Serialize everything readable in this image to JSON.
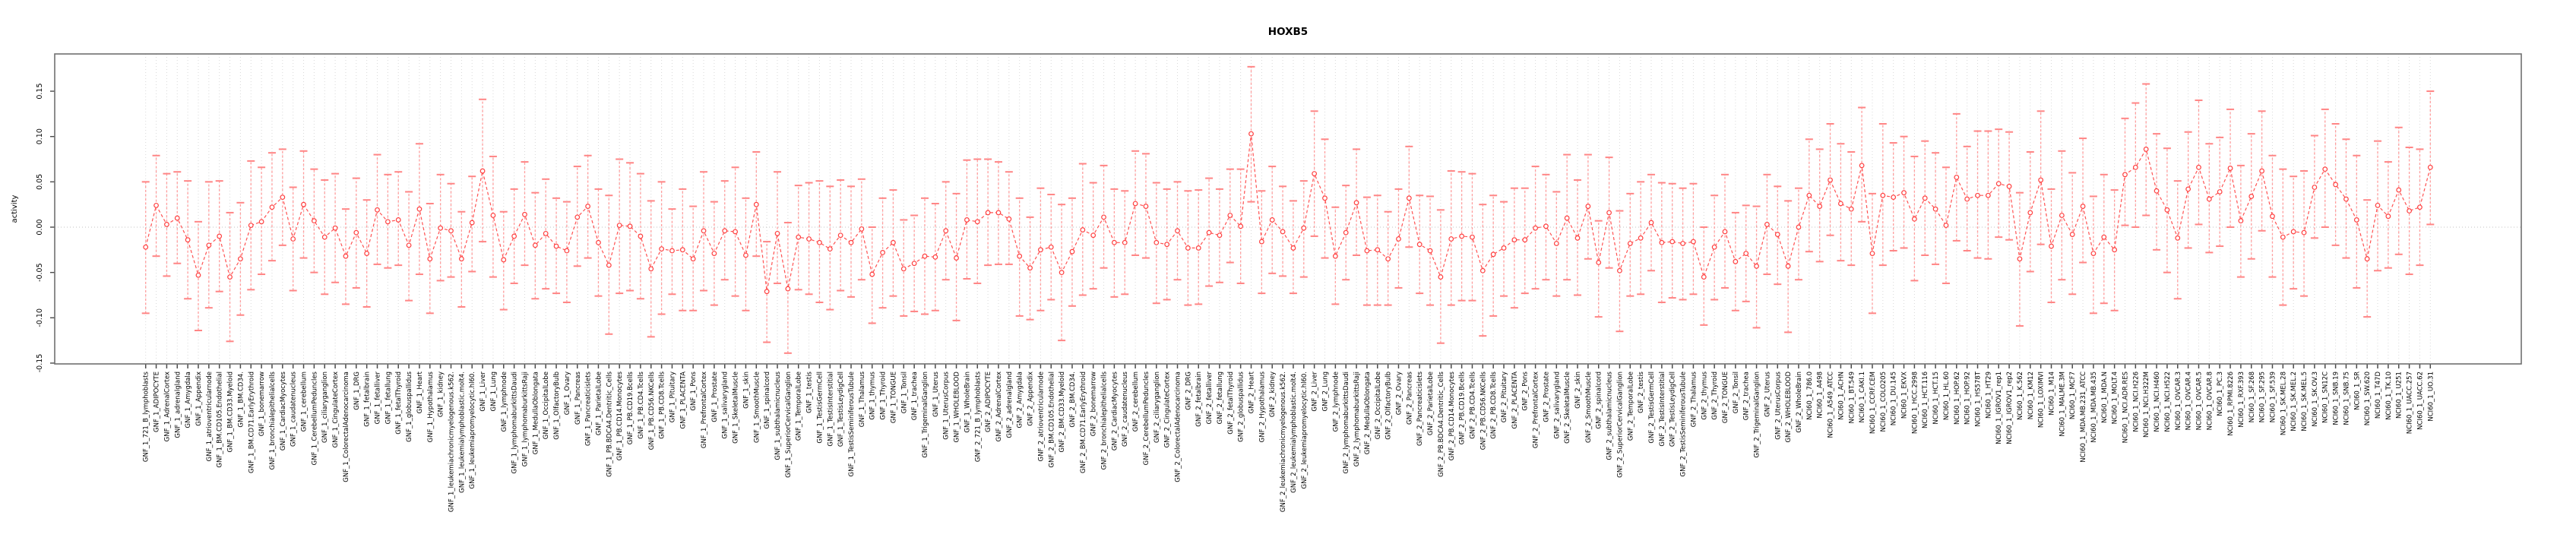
{
  "header": {
    "title": "HOXB5"
  },
  "axes": {
    "y_label": "activity",
    "y_tick_labels": [
      "-0.15",
      "-0.10",
      "-0.05",
      "0.00",
      "0.05",
      "0.10",
      "0.15"
    ]
  },
  "colors": {
    "series_line": "#ff5252",
    "point_stroke": "#ff4040",
    "point_fill": "#ffffff",
    "errorbar_stem": "#ff9e9e",
    "errorbar_cap": "#ff8585",
    "gridline": "#d9d9d9",
    "zero_line": "#c2c2c2",
    "plot_border": "#707070",
    "axis_tick": "#4a4a4a",
    "text": "#000000"
  },
  "chart_data": {
    "type": "line",
    "error_bars": true,
    "title": "HOXB5",
    "xlabel": "",
    "ylabel": "activity",
    "ylim": [
      -0.151,
      0.191
    ],
    "yticks": [
      -0.15,
      -0.1,
      -0.05,
      0.0,
      0.05,
      0.1,
      0.15
    ],
    "zero_line": true,
    "grid": "vertical dotted line at every category",
    "legend": "none",
    "categories": [
      "GNF_1_721_B_lymphoblasts",
      "GNF_1_ADIPOCYTE",
      "GNF_1_AdrenalCortex",
      "GNF_1_adrenalgland",
      "GNF_1_Amygdala",
      "GNF_1_Appendix",
      "GNF_1_atrioventricularnode",
      "GNF_1_BM.CD105.Endothelial",
      "GNF_1_BM.CD33.Myeloid",
      "GNF_1_BM.CD34.",
      "GNF_1_BM.CD71.EarlyErythroid",
      "GNF_1_bonemarrow",
      "GNF_1_bronchialepithelialcells",
      "GNF_1_CardiacMyocytes",
      "GNF_1_caudatenucleus",
      "GNF_1_cerebellum",
      "GNF_1_CerebellumPeduncles",
      "GNF_1_ciliaryganglion",
      "GNF_1_CingulateCortex",
      "GNF_1_ColorectalAdenocarcinoma",
      "GNF_1_DRG",
      "GNF_1_fetalbrain",
      "GNF_1_fetalliver",
      "GNF_1_fetallung",
      "GNF_1_fetalThyroid",
      "GNF_1_globuspallidus",
      "GNF_1_Heart",
      "GNF_1_Hypothalamus",
      "GNF_1_kidney",
      "GNF_1_leukemiachronicmyelogenous.k562.",
      "GNF_1_leukemialymphoblastic.molt4.",
      "GNF_1_leukemiapromyelocytic.hl60.",
      "GNF_1_Liver",
      "GNF_1_Lung",
      "GNF_1_lymphnode",
      "GNF_1_lymphomaburkittsDaudi",
      "GNF_1_lymphomaburkittsRaji",
      "GNF_1_MedullaOblongata",
      "GNF_1_OccipitalLobe",
      "GNF_1_OlfactoryBulb",
      "GNF_1_Ovary",
      "GNF_1_Pancreas",
      "GNF_1_Pancreaticislets",
      "GNF_1_ParietalLobe",
      "GNF_1_PB.BDCA4.Dentritic_Cells",
      "GNF_1_PB.CD14.Monocytes",
      "GNF_1_PB.CD19.Bcells",
      "GNF_1_PB.CD4.Tcells",
      "GNF_1_PB.CD56.NKCells",
      "GNF_1_PB.CD8.Tcells",
      "GNF_1_Pituitary",
      "GNF_1_PLACENTA",
      "GNF_1_Pons",
      "GNF_1_PrefrontalCortex",
      "GNF_1_Prostate",
      "GNF_1_salivarygland",
      "GNF_1_SkeletalMuscle",
      "GNF_1_skin",
      "GNF_1_SmoothMuscle",
      "GNF_1_spinalcord",
      "GNF_1_subthalamicnucleus",
      "GNF_1_SuperiorCervicalGanglion",
      "GNF_1_TemporalLobe",
      "GNF_1_testis",
      "GNF_1_TestisGermCell",
      "GNF_1_TestisInterstitial",
      "GNF_1_TestisLeydigCell",
      "GNF_1_TestisSeminiferousTubule",
      "GNF_1_Thalamus",
      "GNF_1_thymus",
      "GNF_1_Thyroid",
      "GNF_1_TONGUE",
      "GNF_1_Tonsil",
      "GNF_1_trachea",
      "GNF_1_TrigeminalGanglion",
      "GNF_1_Uterus",
      "GNF_1_UterusCorpus",
      "GNF_1_WHOLEBLOOD",
      "GNF_1_WholeBrain",
      "GNF_2_721_B_lymphoblasts",
      "GNF_2_ADIPOCYTE",
      "GNF_2_AdrenalCortex",
      "GNF_2_adrenalgland",
      "GNF_2_Amygdala",
      "GNF_2_Appendix",
      "GNF_2_atrioventricularnode",
      "GNF_2_BM.CD105.Endothelial",
      "GNF_2_BM.CD33.Myeloid",
      "GNF_2_BM.CD34.",
      "GNF_2_BM.CD71.EarlyErythroid",
      "GNF_2_bonemarrow",
      "GNF_2_bronchialepithelialcells",
      "GNF_2_CardiacMyocytes",
      "GNF_2_caudatenucleus",
      "GNF_2_cerebellum",
      "GNF_2_CerebellumPeduncles",
      "GNF_2_ciliaryganglion",
      "GNF_2_CingulateCortex",
      "GNF_2_ColorectalAdenocarcinoma",
      "GNF_2_DRG",
      "GNF_2_fetalbrain",
      "GNF_2_fetalliver",
      "GNF_2_fetallung",
      "GNF_2_fetalThyroid",
      "GNF_2_globuspallidus",
      "GNF_2_Heart",
      "GNF_2_Hypothalamus",
      "GNF_2_kidney",
      "GNF_2_leukemiachronicmyelogenous.k562.",
      "GNF_2_leukemialymphoblastic.molt4.",
      "GNF_2_leukemiapromyelocytic.hl60.",
      "GNF_2_Liver",
      "GNF_2_Lung",
      "GNF_2_lymphnode",
      "GNF_2_lymphomaburkittsDaudi",
      "GNF_2_lymphomaburkittsRaji",
      "GNF_2_MedullaOblongata",
      "GNF_2_OccipitalLobe",
      "GNF_2_OlfactoryBulb",
      "GNF_2_Ovary",
      "GNF_2_Pancreas",
      "GNF_2_Pancreaticislets",
      "GNF_2_ParietalLobe",
      "GNF_2_PB.BDCA4.Dentritic_Cells",
      "GNF_2_PB.CD14.Monocytes",
      "GNF_2_PB.CD19.Bcells",
      "GNF_2_PB.CD4.Tcells",
      "GNF_2_PB.CD56.NKCells",
      "GNF_2_PB.CD8.Tcells",
      "GNF_2_Pituitary",
      "GNF_2_PLACENTA",
      "GNF_2_Pons",
      "GNF_2_PrefrontalCortex",
      "GNF_2_Prostate",
      "GNF_2_salivarygland",
      "GNF_2_SkeletalMuscle",
      "GNF_2_skin",
      "GNF_2_SmoothMuscle",
      "GNF_2_spinalcord",
      "GNF_2_subthalamicnucleus",
      "GNF_2_SuperiorCervicalGanglion",
      "GNF_2_TemporalLobe",
      "GNF_2_testis",
      "GNF_2_TestisGermCell",
      "GNF_2_TestisInterstitial",
      "GNF_2_TestisLeydigCell",
      "GNF_2_TestisSeminiferousTubule",
      "GNF_2_Thalamus",
      "GNF_2_thymus",
      "GNF_2_Thyroid",
      "GNF_2_TONGUE",
      "GNF_2_Tonsil",
      "GNF_2_trachea",
      "GNF_2_TrigeminalGanglion",
      "GNF_2_Uterus",
      "GNF_2_UterusCorpus",
      "GNF_2_WHOLEBLOOD",
      "GNF_2_WholeBrain",
      "NCI60_1_786.0",
      "NCI60_1_A498",
      "NCI60_1_A549_ATCC",
      "NCI60_1_ACHN",
      "NCI60_1_BT.549",
      "NCI60_1_CAKI.1",
      "NCI60_1_CCRF.CEM",
      "NCI60_1_COLO205",
      "NCI60_1_DU.145",
      "NCI60_1_EKVX",
      "NCI60_1_HCC.2998",
      "NCI60_1_HCT.116",
      "NCI60_1_HCT.15",
      "NCI60_1_HL.60",
      "NCI60_1_HOP.62",
      "NCI60_1_HOP.92",
      "NCI60_1_HS578T",
      "NCI60_1_HT29",
      "NCI60_1_IGROV1_rep1",
      "NCI60_1_IGROV1_rep2",
      "NCI60_1_K.562",
      "NCI60_1_KM12",
      "NCI60_1_LOXIMVI",
      "NCI60_1_M14",
      "NCI60_1_MALME.3M",
      "NCI60_1_MCF7",
      "NCI60_1_MDA.MB.231_ATCC",
      "NCI60_1_MDA.MB.435",
      "NCI60_1_MDA.N",
      "NCI60_1_MOLT.4",
      "NCI60_1_NCI.ADR.RES",
      "NCI60_1_NCI.H226",
      "NCI60_1_NCI.H322M",
      "NCI60_1_NCI.H460",
      "NCI60_1_NCI.H522",
      "NCI60_1_OVCAR.3",
      "NCI60_1_OVCAR.4",
      "NCI60_1_OVCAR.5",
      "NCI60_1_OVCAR.8",
      "NCI60_1_PC.3",
      "NCI60_1_RPMI.8226",
      "NCI60_1_RXF.393",
      "NCI60_1_SF.268",
      "NCI60_1_SF.295",
      "NCI60_1_SF.539",
      "NCI60_1_SK.MEL.28",
      "NCI60_1_SK.MEL.2",
      "NCI60_1_SK.MEL.5",
      "NCI60_1_SK.OV.3",
      "NCI60_1_SN12C",
      "NCI60_1_SNB.19",
      "NCI60_1_SNB.75",
      "NCI60_1_SR",
      "NCI60_1_SW.620",
      "NCI60_1_T47D",
      "NCI60_1_TK.10",
      "NCI60_1_U251",
      "NCI60_1_UACC.257",
      "NCI60_1_UACC.62",
      "NCI60_1_UO.31"
    ],
    "series": [
      {
        "name": "activity",
        "values": [
          -0.022,
          0.024,
          0.003,
          0.01,
          -0.014,
          -0.053,
          -0.02,
          -0.01,
          -0.055,
          -0.035,
          0.002,
          0.006,
          0.022,
          0.033,
          -0.013,
          0.025,
          0.007,
          -0.011,
          -0.001,
          -0.032,
          -0.006,
          -0.029,
          0.019,
          0.006,
          0.008,
          -0.02,
          0.02,
          -0.035,
          -0.001,
          -0.004,
          -0.035,
          0.005,
          0.062,
          0.013,
          -0.036,
          -0.01,
          0.014,
          -0.02,
          -0.007,
          -0.021,
          -0.026,
          0.011,
          0.023,
          -0.017,
          -0.042,
          0.002,
          0.001,
          -0.01,
          -0.046,
          -0.024,
          -0.026,
          -0.025,
          -0.035,
          -0.004,
          -0.029,
          -0.004,
          -0.005,
          -0.031,
          0.025,
          -0.071,
          -0.007,
          -0.068,
          -0.011,
          -0.013,
          -0.017,
          -0.024,
          -0.009,
          -0.017,
          -0.002,
          -0.052,
          -0.028,
          -0.017,
          -0.046,
          -0.04,
          -0.032,
          -0.033,
          -0.004,
          -0.034,
          0.008,
          0.006,
          0.016,
          0.016,
          0.009,
          -0.032,
          -0.045,
          -0.025,
          -0.022,
          -0.05,
          -0.027,
          -0.003,
          -0.009,
          0.011,
          -0.017,
          -0.017,
          0.026,
          0.023,
          -0.017,
          -0.019,
          -0.004,
          -0.023,
          -0.023,
          -0.006,
          -0.009,
          0.013,
          0.001,
          0.103,
          -0.016,
          0.008,
          -0.005,
          -0.023,
          -0.001,
          0.059,
          0.032,
          -0.032,
          -0.006,
          0.027,
          -0.026,
          -0.025,
          -0.035,
          -0.013,
          0.032,
          -0.019,
          -0.026,
          -0.055,
          -0.013,
          -0.01,
          -0.011,
          -0.048,
          -0.03,
          -0.023,
          -0.014,
          -0.014,
          -0.001,
          0.001,
          -0.018,
          0.01,
          -0.012,
          0.023,
          -0.039,
          0.016,
          -0.048,
          -0.018,
          -0.012,
          0.005,
          -0.017,
          -0.016,
          -0.018,
          -0.016,
          -0.055,
          -0.022,
          -0.005,
          -0.038,
          -0.029,
          -0.043,
          0.003,
          -0.008,
          -0.043,
          0.0,
          0.035,
          0.023,
          0.052,
          0.026,
          0.02,
          0.068,
          -0.029,
          0.035,
          0.033,
          0.038,
          0.009,
          0.032,
          0.02,
          0.002,
          0.055,
          0.031,
          0.035,
          0.035,
          0.048,
          0.045,
          -0.035,
          0.016,
          0.052,
          -0.021,
          0.013,
          -0.008,
          0.023,
          -0.029,
          -0.011,
          -0.025,
          0.058,
          0.066,
          0.086,
          0.04,
          0.019,
          -0.012,
          0.042,
          0.066,
          0.031,
          0.039,
          0.065,
          0.007,
          0.034,
          0.062,
          0.012,
          -0.011,
          -0.005,
          -0.006,
          0.044,
          0.064,
          0.047,
          0.031,
          0.008,
          -0.035,
          0.024,
          0.012,
          0.041,
          0.018,
          0.022,
          0.066
        ]
      },
      {
        "name": "ci_lower",
        "values": [
          -0.095,
          -0.032,
          -0.054,
          -0.04,
          -0.079,
          -0.114,
          -0.089,
          -0.071,
          -0.126,
          -0.097,
          -0.069,
          -0.052,
          -0.037,
          -0.02,
          -0.07,
          -0.034,
          -0.05,
          -0.074,
          -0.061,
          -0.085,
          -0.067,
          -0.088,
          -0.041,
          -0.045,
          -0.042,
          -0.081,
          -0.052,
          -0.095,
          -0.059,
          -0.055,
          -0.088,
          -0.049,
          -0.016,
          -0.055,
          -0.091,
          -0.062,
          -0.042,
          -0.079,
          -0.068,
          -0.073,
          -0.083,
          -0.043,
          -0.034,
          -0.076,
          -0.118,
          -0.073,
          -0.07,
          -0.079,
          -0.121,
          -0.096,
          -0.074,
          -0.092,
          -0.092,
          -0.07,
          -0.086,
          -0.058,
          -0.076,
          -0.092,
          -0.032,
          -0.127,
          -0.062,
          -0.139,
          -0.069,
          -0.074,
          -0.083,
          -0.091,
          -0.07,
          -0.077,
          -0.058,
          -0.106,
          -0.089,
          -0.076,
          -0.098,
          -0.093,
          -0.096,
          -0.092,
          -0.058,
          -0.103,
          -0.057,
          -0.062,
          -0.042,
          -0.041,
          -0.041,
          -0.098,
          -0.102,
          -0.092,
          -0.08,
          -0.125,
          -0.087,
          -0.075,
          -0.068,
          -0.045,
          -0.077,
          -0.074,
          -0.031,
          -0.034,
          -0.084,
          -0.08,
          -0.058,
          -0.086,
          -0.085,
          -0.065,
          -0.061,
          -0.039,
          -0.062,
          0.028,
          -0.073,
          -0.051,
          -0.054,
          -0.073,
          -0.055,
          -0.01,
          -0.034,
          -0.085,
          -0.058,
          -0.031,
          -0.086,
          -0.086,
          -0.086,
          -0.067,
          -0.022,
          -0.073,
          -0.086,
          -0.128,
          -0.086,
          -0.081,
          -0.081,
          -0.12,
          -0.098,
          -0.076,
          -0.089,
          -0.073,
          -0.068,
          -0.058,
          -0.076,
          -0.058,
          -0.075,
          -0.035,
          -0.099,
          -0.045,
          -0.115,
          -0.076,
          -0.074,
          -0.048,
          -0.083,
          -0.078,
          -0.08,
          -0.074,
          -0.108,
          -0.08,
          -0.067,
          -0.092,
          -0.082,
          -0.111,
          -0.052,
          -0.063,
          -0.116,
          -0.058,
          -0.027,
          -0.038,
          -0.009,
          -0.037,
          -0.042,
          0.006,
          -0.095,
          -0.042,
          -0.026,
          -0.023,
          -0.059,
          -0.031,
          -0.041,
          -0.062,
          -0.015,
          -0.026,
          -0.034,
          -0.035,
          -0.011,
          -0.014,
          -0.109,
          -0.049,
          -0.019,
          -0.083,
          -0.058,
          -0.074,
          -0.039,
          -0.095,
          -0.084,
          -0.092,
          0.002,
          0.0,
          0.013,
          -0.025,
          -0.05,
          -0.079,
          -0.023,
          0.003,
          -0.028,
          -0.021,
          0.0,
          -0.055,
          -0.035,
          -0.004,
          -0.055,
          -0.086,
          -0.068,
          -0.076,
          -0.012,
          0.0,
          -0.02,
          -0.034,
          -0.067,
          -0.099,
          -0.048,
          -0.045,
          -0.03,
          -0.052,
          -0.042,
          0.003
        ]
      },
      {
        "name": "ci_upper",
        "values": [
          0.05,
          0.079,
          0.059,
          0.061,
          0.051,
          0.006,
          0.05,
          0.051,
          0.016,
          0.027,
          0.073,
          0.066,
          0.082,
          0.086,
          0.044,
          0.084,
          0.064,
          0.052,
          0.059,
          0.02,
          0.054,
          0.03,
          0.08,
          0.058,
          0.061,
          0.039,
          0.092,
          0.026,
          0.058,
          0.048,
          0.017,
          0.056,
          0.141,
          0.078,
          0.017,
          0.042,
          0.072,
          0.038,
          0.053,
          0.032,
          0.028,
          0.067,
          0.079,
          0.042,
          0.035,
          0.075,
          0.071,
          0.059,
          0.029,
          0.05,
          0.02,
          0.042,
          0.023,
          0.061,
          0.028,
          0.051,
          0.066,
          0.032,
          0.083,
          -0.016,
          0.061,
          0.005,
          0.046,
          0.049,
          0.051,
          0.045,
          0.052,
          0.045,
          0.053,
          0.0,
          0.032,
          0.041,
          0.008,
          0.013,
          0.032,
          0.026,
          0.05,
          0.037,
          0.074,
          0.075,
          0.075,
          0.072,
          0.061,
          0.032,
          0.011,
          0.043,
          0.036,
          0.025,
          0.032,
          0.07,
          0.049,
          0.068,
          0.042,
          0.04,
          0.084,
          0.081,
          0.049,
          0.042,
          0.05,
          0.04,
          0.041,
          0.054,
          0.042,
          0.064,
          0.064,
          0.177,
          0.04,
          0.067,
          0.045,
          0.029,
          0.051,
          0.128,
          0.097,
          0.022,
          0.046,
          0.086,
          0.033,
          0.035,
          0.017,
          0.042,
          0.089,
          0.035,
          0.034,
          0.019,
          0.062,
          0.061,
          0.059,
          0.025,
          0.035,
          0.028,
          0.043,
          0.043,
          0.067,
          0.058,
          0.039,
          0.08,
          0.052,
          0.08,
          0.007,
          0.077,
          0.018,
          0.037,
          0.05,
          0.058,
          0.049,
          0.048,
          0.043,
          0.048,
          0.0,
          0.035,
          0.058,
          0.016,
          0.024,
          0.023,
          0.058,
          0.045,
          0.029,
          0.043,
          0.097,
          0.086,
          0.114,
          0.092,
          0.083,
          0.132,
          0.037,
          0.114,
          0.093,
          0.1,
          0.078,
          0.095,
          0.082,
          0.066,
          0.125,
          0.089,
          0.106,
          0.106,
          0.108,
          0.105,
          0.038,
          0.083,
          0.128,
          0.042,
          0.084,
          0.06,
          0.098,
          0.034,
          0.058,
          0.041,
          0.12,
          0.137,
          0.158,
          0.103,
          0.087,
          0.051,
          0.105,
          0.14,
          0.092,
          0.099,
          0.13,
          0.068,
          0.103,
          0.128,
          0.079,
          0.064,
          0.056,
          0.062,
          0.101,
          0.13,
          0.114,
          0.097,
          0.079,
          0.03,
          0.095,
          0.072,
          0.11,
          0.088,
          0.086,
          0.15
        ]
      }
    ]
  }
}
